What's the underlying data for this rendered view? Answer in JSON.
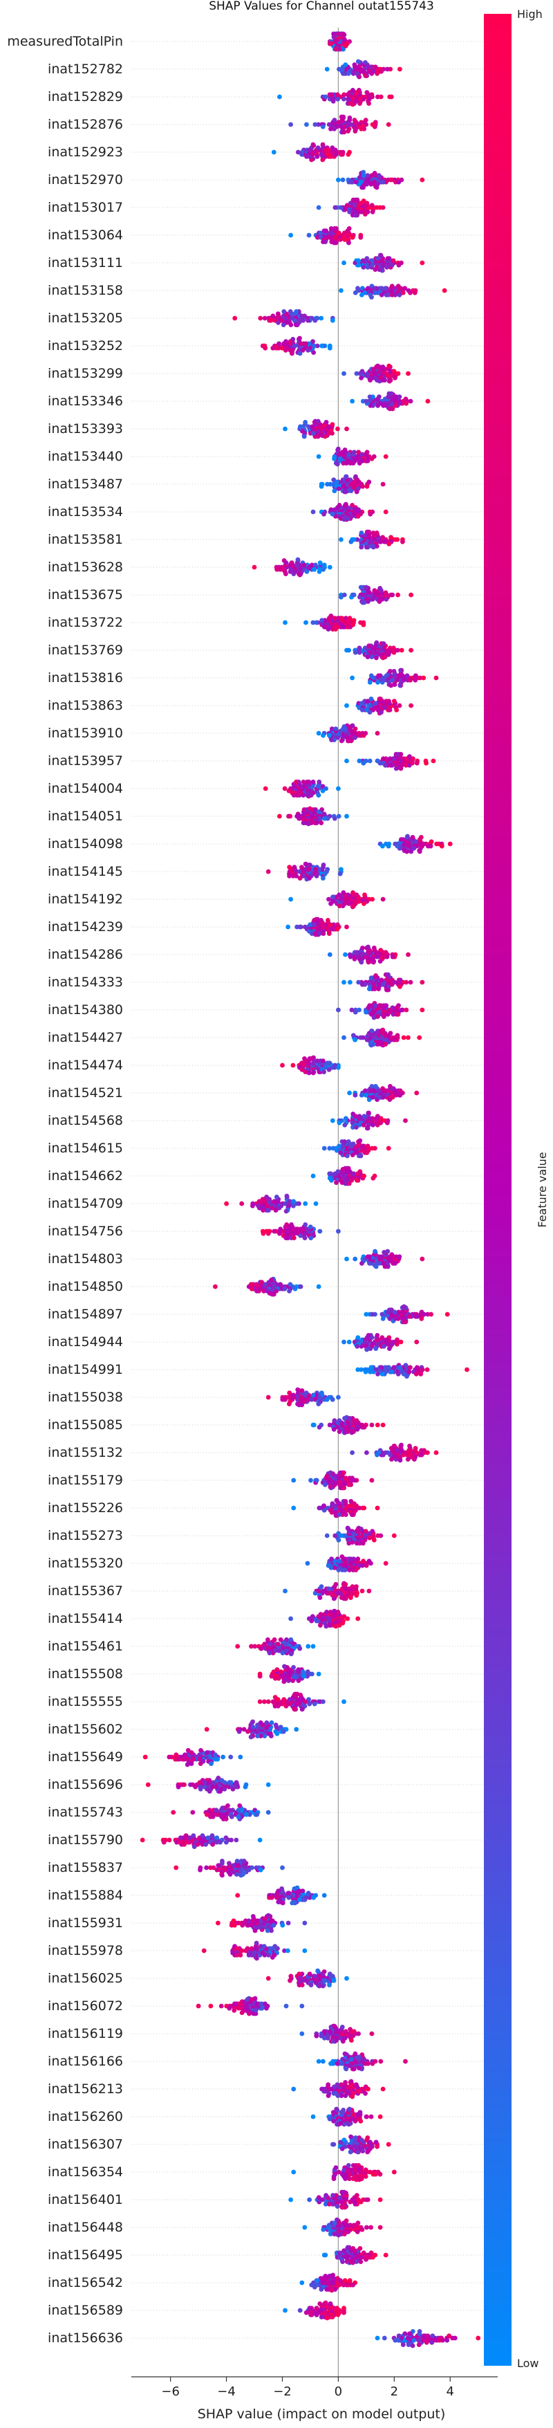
{
  "chart_data": {
    "type": "scatter",
    "subtype": "shap-beeswarm",
    "title": "SHAP Values for Channel outat155743",
    "xlabel": "SHAP value (impact on model output)",
    "xlim": [
      -7.4,
      5.7
    ],
    "xticks": [
      -6,
      -4,
      -2,
      0,
      2,
      4
    ],
    "zero_line": true,
    "colorbar": {
      "label": "Feature value",
      "high_label": "High",
      "low_label": "Low",
      "high_color": "#ff0052",
      "low_color": "#008bfb"
    },
    "features": [
      {
        "name": "measuredTotalPin",
        "center": 0.0,
        "spread": 0.35,
        "min": -0.3,
        "max": 0.4,
        "trend": 0
      },
      {
        "name": "inat152782",
        "center": 0.8,
        "spread": 1.0,
        "min": -0.4,
        "max": 2.2,
        "trend": 1
      },
      {
        "name": "inat152829",
        "center": 0.5,
        "spread": 1.2,
        "min": -2.1,
        "max": 1.9,
        "trend": 1
      },
      {
        "name": "inat152876",
        "center": 0.3,
        "spread": 1.1,
        "min": -1.7,
        "max": 1.8,
        "trend": 1
      },
      {
        "name": "inat152923",
        "center": -0.6,
        "spread": 1.0,
        "min": -2.3,
        "max": 0.4,
        "trend": 1
      },
      {
        "name": "inat152970",
        "center": 1.2,
        "spread": 1.0,
        "min": 0.0,
        "max": 3.0,
        "trend": 1
      },
      {
        "name": "inat153017",
        "center": 0.6,
        "spread": 0.8,
        "min": -0.7,
        "max": 1.6,
        "trend": 1
      },
      {
        "name": "inat153064",
        "center": -0.2,
        "spread": 0.9,
        "min": -1.7,
        "max": 0.8,
        "trend": 1
      },
      {
        "name": "inat153111",
        "center": 1.4,
        "spread": 1.0,
        "min": 0.2,
        "max": 3.0,
        "trend": 1
      },
      {
        "name": "inat153158",
        "center": 1.6,
        "spread": 1.1,
        "min": 0.1,
        "max": 3.8,
        "trend": 1
      },
      {
        "name": "inat153205",
        "center": -1.6,
        "spread": 1.1,
        "min": -3.7,
        "max": -0.2,
        "trend": -1
      },
      {
        "name": "inat153252",
        "center": -1.5,
        "spread": 1.0,
        "min": -2.7,
        "max": -0.3,
        "trend": -1
      },
      {
        "name": "inat153299",
        "center": 1.5,
        "spread": 0.8,
        "min": 0.2,
        "max": 2.5,
        "trend": 1
      },
      {
        "name": "inat153346",
        "center": 1.7,
        "spread": 0.9,
        "min": 0.5,
        "max": 3.2,
        "trend": 1
      },
      {
        "name": "inat153393",
        "center": -0.7,
        "spread": 0.8,
        "min": -1.9,
        "max": 0.3,
        "trend": 1
      },
      {
        "name": "inat153440",
        "center": 0.5,
        "spread": 0.8,
        "min": -0.7,
        "max": 1.7,
        "trend": 1
      },
      {
        "name": "inat153487",
        "center": 0.3,
        "spread": 0.8,
        "min": -0.6,
        "max": 1.6,
        "trend": 1
      },
      {
        "name": "inat153534",
        "center": 0.3,
        "spread": 0.9,
        "min": -0.9,
        "max": 1.7,
        "trend": 1
      },
      {
        "name": "inat153581",
        "center": 1.3,
        "spread": 0.8,
        "min": 0.1,
        "max": 2.3,
        "trend": 1
      },
      {
        "name": "inat153628",
        "center": -1.3,
        "spread": 1.0,
        "min": -3.0,
        "max": -0.3,
        "trend": -1
      },
      {
        "name": "inat153675",
        "center": 1.2,
        "spread": 1.0,
        "min": 0.1,
        "max": 2.6,
        "trend": 1
      },
      {
        "name": "inat153722",
        "center": -0.2,
        "spread": 0.9,
        "min": -1.9,
        "max": 0.9,
        "trend": 1
      },
      {
        "name": "inat153769",
        "center": 1.4,
        "spread": 0.9,
        "min": 0.3,
        "max": 2.6,
        "trend": 1
      },
      {
        "name": "inat153816",
        "center": 2.0,
        "spread": 1.0,
        "min": 0.5,
        "max": 3.5,
        "trend": 1
      },
      {
        "name": "inat153863",
        "center": 1.4,
        "spread": 0.9,
        "min": 0.3,
        "max": 2.6,
        "trend": 1
      },
      {
        "name": "inat153910",
        "center": 0.2,
        "spread": 0.8,
        "min": -0.7,
        "max": 1.4,
        "trend": 1
      },
      {
        "name": "inat153957",
        "center": 2.0,
        "spread": 1.1,
        "min": 0.3,
        "max": 3.4,
        "trend": 1
      },
      {
        "name": "inat154004",
        "center": -1.2,
        "spread": 0.9,
        "min": -2.6,
        "max": 0.0,
        "trend": -1
      },
      {
        "name": "inat154051",
        "center": -0.8,
        "spread": 0.9,
        "min": -2.1,
        "max": 0.3,
        "trend": -1
      },
      {
        "name": "inat154098",
        "center": 2.6,
        "spread": 1.0,
        "min": 1.5,
        "max": 4.0,
        "trend": 1
      },
      {
        "name": "inat154145",
        "center": -1.0,
        "spread": 0.9,
        "min": -2.5,
        "max": 0.1,
        "trend": -1
      },
      {
        "name": "inat154192",
        "center": 0.4,
        "spread": 0.9,
        "min": -1.7,
        "max": 1.6,
        "trend": 1
      },
      {
        "name": "inat154239",
        "center": -0.6,
        "spread": 0.8,
        "min": -1.8,
        "max": 0.3,
        "trend": 1
      },
      {
        "name": "inat154286",
        "center": 1.2,
        "spread": 0.9,
        "min": -0.3,
        "max": 2.5,
        "trend": 1
      },
      {
        "name": "inat154333",
        "center": 1.6,
        "spread": 1.0,
        "min": 0.2,
        "max": 3.0,
        "trend": 1
      },
      {
        "name": "inat154380",
        "center": 1.5,
        "spread": 1.0,
        "min": 0.0,
        "max": 3.0,
        "trend": 1
      },
      {
        "name": "inat154427",
        "center": 1.4,
        "spread": 0.9,
        "min": 0.2,
        "max": 2.9,
        "trend": 1
      },
      {
        "name": "inat154474",
        "center": -0.8,
        "spread": 0.8,
        "min": -2.0,
        "max": 0.0,
        "trend": -1
      },
      {
        "name": "inat154521",
        "center": 1.5,
        "spread": 0.9,
        "min": 0.4,
        "max": 2.8,
        "trend": 1
      },
      {
        "name": "inat154568",
        "center": 0.9,
        "spread": 0.9,
        "min": -0.2,
        "max": 2.4,
        "trend": 1
      },
      {
        "name": "inat154615",
        "center": 0.6,
        "spread": 0.8,
        "min": -0.5,
        "max": 1.8,
        "trend": 1
      },
      {
        "name": "inat154662",
        "center": 0.3,
        "spread": 0.9,
        "min": -0.9,
        "max": 1.3,
        "trend": 1
      },
      {
        "name": "inat154709",
        "center": -2.3,
        "spread": 1.1,
        "min": -4.0,
        "max": -0.8,
        "trend": -1
      },
      {
        "name": "inat154756",
        "center": -1.6,
        "spread": 1.0,
        "min": -2.7,
        "max": 0.0,
        "trend": -1
      },
      {
        "name": "inat154803",
        "center": 1.5,
        "spread": 0.8,
        "min": 0.3,
        "max": 3.0,
        "trend": 1
      },
      {
        "name": "inat154850",
        "center": -2.3,
        "spread": 1.1,
        "min": -4.4,
        "max": -0.7,
        "trend": -1
      },
      {
        "name": "inat154897",
        "center": 2.3,
        "spread": 1.0,
        "min": 1.0,
        "max": 3.9,
        "trend": 1
      },
      {
        "name": "inat154944",
        "center": 1.3,
        "spread": 0.9,
        "min": 0.2,
        "max": 2.8,
        "trend": 1
      },
      {
        "name": "inat154991",
        "center": 2.1,
        "spread": 1.2,
        "min": 0.7,
        "max": 4.6,
        "trend": 1
      },
      {
        "name": "inat155038",
        "center": -1.1,
        "spread": 1.0,
        "min": -2.5,
        "max": 0.0,
        "trend": -1
      },
      {
        "name": "inat155085",
        "center": 0.3,
        "spread": 0.9,
        "min": -0.9,
        "max": 1.6,
        "trend": 1
      },
      {
        "name": "inat155132",
        "center": 2.2,
        "spread": 1.0,
        "min": 0.5,
        "max": 3.5,
        "trend": 1
      },
      {
        "name": "inat155179",
        "center": -0.1,
        "spread": 0.9,
        "min": -1.6,
        "max": 1.2,
        "trend": 1
      },
      {
        "name": "inat155226",
        "center": 0.2,
        "spread": 0.9,
        "min": -1.6,
        "max": 1.4,
        "trend": 1
      },
      {
        "name": "inat155273",
        "center": 0.7,
        "spread": 0.9,
        "min": -0.4,
        "max": 2.0,
        "trend": 1
      },
      {
        "name": "inat155320",
        "center": 0.3,
        "spread": 0.9,
        "min": -1.1,
        "max": 1.7,
        "trend": 1
      },
      {
        "name": "inat155367",
        "center": 0.0,
        "spread": 0.9,
        "min": -1.9,
        "max": 1.1,
        "trend": 1
      },
      {
        "name": "inat155414",
        "center": -0.3,
        "spread": 0.8,
        "min": -1.7,
        "max": 0.7,
        "trend": 1
      },
      {
        "name": "inat155461",
        "center": -2.0,
        "spread": 1.0,
        "min": -3.6,
        "max": -0.9,
        "trend": -1
      },
      {
        "name": "inat155508",
        "center": -1.8,
        "spread": 0.9,
        "min": -2.8,
        "max": -0.7,
        "trend": -1
      },
      {
        "name": "inat155555",
        "center": -1.6,
        "spread": 1.0,
        "min": -2.8,
        "max": 0.2,
        "trend": -1
      },
      {
        "name": "inat155602",
        "center": -2.7,
        "spread": 1.0,
        "min": -4.7,
        "max": -1.5,
        "trend": -1
      },
      {
        "name": "inat155649",
        "center": -5.0,
        "spread": 1.2,
        "min": -6.9,
        "max": -3.5,
        "trend": -1
      },
      {
        "name": "inat155696",
        "center": -4.5,
        "spread": 1.2,
        "min": -6.8,
        "max": -2.5,
        "trend": -1
      },
      {
        "name": "inat155743",
        "center": -3.9,
        "spread": 1.1,
        "min": -5.9,
        "max": -2.5,
        "trend": -1
      },
      {
        "name": "inat155790",
        "center": -5.0,
        "spread": 1.3,
        "min": -7.0,
        "max": -2.8,
        "trend": -1
      },
      {
        "name": "inat155837",
        "center": -3.8,
        "spread": 1.1,
        "min": -5.8,
        "max": -2.0,
        "trend": -1
      },
      {
        "name": "inat155884",
        "center": -1.7,
        "spread": 0.9,
        "min": -3.6,
        "max": -0.5,
        "trend": -1
      },
      {
        "name": "inat155931",
        "center": -2.8,
        "spread": 1.0,
        "min": -4.3,
        "max": -1.2,
        "trend": -1
      },
      {
        "name": "inat155978",
        "center": -3.0,
        "spread": 1.0,
        "min": -4.8,
        "max": -1.2,
        "trend": -1
      },
      {
        "name": "inat156025",
        "center": -0.8,
        "spread": 0.9,
        "min": -2.5,
        "max": 0.3,
        "trend": -1
      },
      {
        "name": "inat156072",
        "center": -3.2,
        "spread": 1.1,
        "min": -5.0,
        "max": -1.3,
        "trend": -1
      },
      {
        "name": "inat156119",
        "center": 0.0,
        "spread": 0.8,
        "min": -1.3,
        "max": 1.2,
        "trend": 1
      },
      {
        "name": "inat156166",
        "center": 0.5,
        "spread": 1.0,
        "min": -0.7,
        "max": 2.4,
        "trend": 1
      },
      {
        "name": "inat156213",
        "center": 0.3,
        "spread": 0.9,
        "min": -1.6,
        "max": 1.6,
        "trend": 1
      },
      {
        "name": "inat156260",
        "center": 0.3,
        "spread": 0.9,
        "min": -0.9,
        "max": 1.5,
        "trend": 1
      },
      {
        "name": "inat156307",
        "center": 0.7,
        "spread": 0.8,
        "min": -0.2,
        "max": 1.8,
        "trend": 1
      },
      {
        "name": "inat156354",
        "center": 0.6,
        "spread": 0.9,
        "min": -1.6,
        "max": 2.0,
        "trend": 1
      },
      {
        "name": "inat156401",
        "center": 0.2,
        "spread": 0.9,
        "min": -1.7,
        "max": 1.5,
        "trend": 1
      },
      {
        "name": "inat156448",
        "center": 0.2,
        "spread": 0.9,
        "min": -1.2,
        "max": 1.5,
        "trend": 1
      },
      {
        "name": "inat156495",
        "center": 0.5,
        "spread": 0.9,
        "min": -0.5,
        "max": 1.7,
        "trend": 1
      },
      {
        "name": "inat156542",
        "center": -0.3,
        "spread": 0.8,
        "min": -1.3,
        "max": 0.6,
        "trend": 1
      },
      {
        "name": "inat156589",
        "center": -0.5,
        "spread": 0.8,
        "min": -1.9,
        "max": 0.2,
        "trend": 1
      },
      {
        "name": "inat156636",
        "center": 3.0,
        "spread": 1.1,
        "min": 1.4,
        "max": 5.0,
        "trend": 1
      }
    ]
  }
}
